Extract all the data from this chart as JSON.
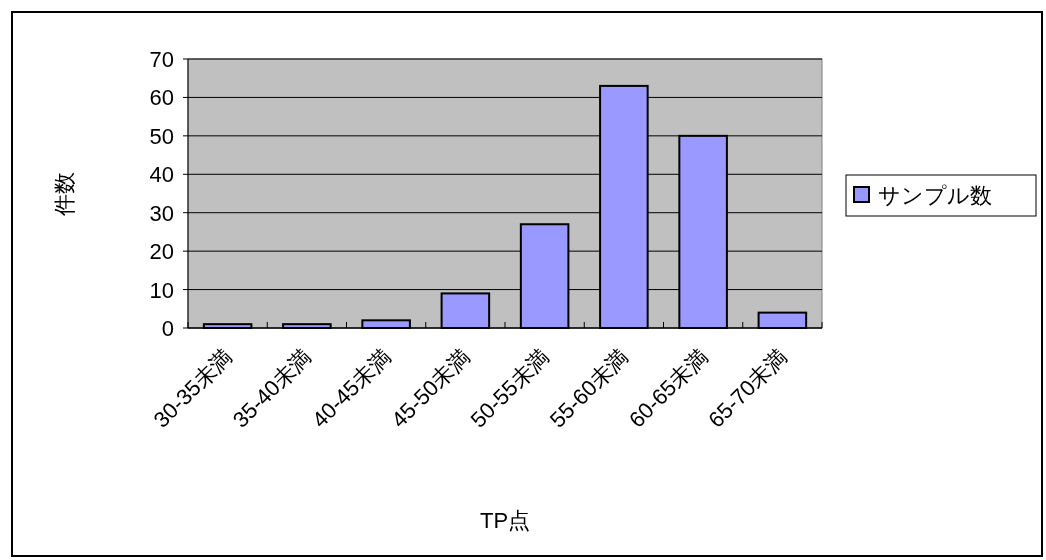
{
  "chart_data": {
    "type": "bar",
    "xlabel": "TP点",
    "ylabel": "件数",
    "categories": [
      "30-35未満",
      "35-40未満",
      "40-45未満",
      "45-50未満",
      "50-55未満",
      "55-60未満",
      "60-65未満",
      "65-70未満"
    ],
    "series": [
      {
        "name": "サンプル数",
        "color": "#9999ff",
        "values": [
          1,
          1,
          2,
          9,
          27,
          63,
          50,
          4
        ]
      }
    ],
    "ylim": [
      0,
      70
    ],
    "yticks": [
      0,
      10,
      20,
      30,
      40,
      50,
      60,
      70
    ],
    "grid": "y",
    "legend": "right"
  }
}
